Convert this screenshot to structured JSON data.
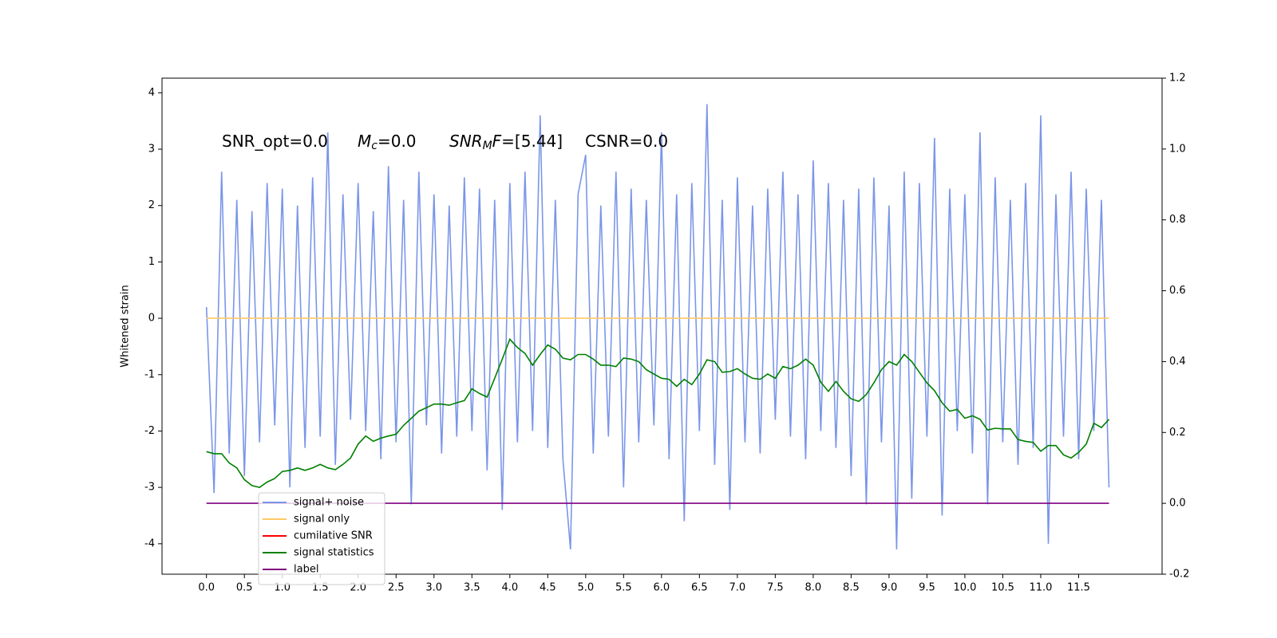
{
  "chart_data": {
    "type": "line",
    "ylabel": "Whitened strain",
    "annotations": [
      [
        {
          "text": "SNR_opt=0.0"
        }
      ],
      [
        {
          "text": "M",
          "italic": true
        },
        {
          "text": "c",
          "italic": true,
          "sub": true
        },
        {
          "text": "=0.0"
        }
      ],
      [
        {
          "text": "SNR",
          "italic": true
        },
        {
          "text": "M",
          "italic": true,
          "sub": true
        },
        {
          "text": "F",
          "italic": true
        },
        {
          "text": "=[5.44]"
        }
      ],
      [
        {
          "text": "CSNR=0.0"
        }
      ]
    ],
    "x": [
      0.0,
      0.1,
      0.2,
      0.3,
      0.4,
      0.5,
      0.6,
      0.7,
      0.8,
      0.9,
      1.0,
      1.1,
      1.2,
      1.3,
      1.4,
      1.5,
      1.6,
      1.7,
      1.8,
      1.9,
      2.0,
      2.1,
      2.2,
      2.3,
      2.4,
      2.5,
      2.6,
      2.7,
      2.8,
      2.9,
      3.0,
      3.1,
      3.2,
      3.3,
      3.4,
      3.5,
      3.6,
      3.7,
      3.8,
      3.9,
      4.0,
      4.1,
      4.2,
      4.3,
      4.4,
      4.5,
      4.6,
      4.7,
      4.8,
      4.9,
      5.0,
      5.1,
      5.2,
      5.3,
      5.4,
      5.5,
      5.6,
      5.7,
      5.8,
      5.9,
      6.0,
      6.1,
      6.2,
      6.3,
      6.4,
      6.5,
      6.6,
      6.7,
      6.8,
      6.9,
      7.0,
      7.1,
      7.2,
      7.3,
      7.4,
      7.5,
      7.6,
      7.7,
      7.8,
      7.9,
      8.0,
      8.1,
      8.2,
      8.3,
      8.4,
      8.5,
      8.6,
      8.7,
      8.8,
      8.9,
      9.0,
      9.1,
      9.2,
      9.3,
      9.4,
      9.5,
      9.6,
      9.7,
      9.8,
      9.9,
      10.0,
      10.1,
      10.2,
      10.3,
      10.4,
      10.5,
      10.6,
      10.7,
      10.8,
      10.9,
      11.0,
      11.1,
      11.2,
      11.3,
      11.4,
      11.5,
      11.6,
      11.7,
      11.8,
      11.9
    ],
    "series": [
      {
        "name": "signal+ noise",
        "color": "#7b96e8",
        "values": [
          0.2,
          -3.1,
          2.6,
          -2.4,
          2.1,
          -2.8,
          1.9,
          -2.2,
          2.4,
          -1.9,
          2.3,
          -3.0,
          2.0,
          -2.3,
          2.5,
          -2.1,
          3.3,
          -2.6,
          2.2,
          -1.8,
          2.4,
          -2.0,
          1.9,
          -2.5,
          2.7,
          -2.2,
          2.1,
          -3.3,
          2.6,
          -1.9,
          2.2,
          -2.4,
          2.0,
          -2.1,
          2.5,
          -2.0,
          2.3,
          -2.7,
          2.1,
          -3.4,
          2.4,
          -2.2,
          2.6,
          -2.0,
          3.6,
          -2.3,
          2.1,
          -2.5,
          -4.1,
          2.2,
          2.9,
          -2.4,
          2.0,
          -2.1,
          2.6,
          -3.0,
          2.3,
          -2.2,
          2.1,
          -1.9,
          3.3,
          -2.5,
          2.2,
          -3.6,
          2.4,
          -2.0,
          3.8,
          -2.6,
          2.1,
          -3.4,
          2.5,
          -2.2,
          2.0,
          -2.4,
          2.3,
          -1.8,
          2.6,
          -2.1,
          2.2,
          -2.5,
          2.8,
          -2.0,
          2.4,
          -2.3,
          2.1,
          -2.8,
          2.3,
          -3.3,
          2.5,
          -2.2,
          2.0,
          -4.1,
          2.6,
          -3.2,
          2.4,
          -2.1,
          3.2,
          -3.5,
          2.3,
          -2.0,
          2.2,
          -2.4,
          3.3,
          -3.3,
          2.5,
          -2.2,
          2.1,
          -2.6,
          2.4,
          -2.3,
          3.6,
          -4.0,
          2.2,
          -2.1,
          2.6,
          -2.5,
          2.3,
          -2.0,
          2.1,
          -3.0
        ]
      },
      {
        "name": "signal only",
        "color": "#ffc966",
        "x": [
          0.0,
          11.9
        ],
        "values": [
          0,
          0
        ]
      },
      {
        "name": "cumilative SNR",
        "color": "#ff0000"
      },
      {
        "name": "signal statistics",
        "color": "#008000",
        "axis": "y2",
        "values": [
          0.146,
          0.14,
          0.14,
          0.114,
          0.1,
          0.067,
          0.05,
          0.045,
          0.06,
          0.07,
          0.09,
          0.093,
          0.1,
          0.093,
          0.1,
          0.11,
          0.1,
          0.095,
          0.11,
          0.128,
          0.167,
          0.19,
          0.175,
          0.184,
          0.19,
          0.195,
          0.22,
          0.24,
          0.26,
          0.27,
          0.28,
          0.28,
          0.277,
          0.284,
          0.29,
          0.323,
          0.31,
          0.3,
          0.353,
          0.407,
          0.463,
          0.44,
          0.423,
          0.39,
          0.42,
          0.447,
          0.435,
          0.41,
          0.405,
          0.42,
          0.42,
          0.407,
          0.39,
          0.39,
          0.386,
          0.41,
          0.407,
          0.4,
          0.377,
          0.365,
          0.353,
          0.35,
          0.33,
          0.35,
          0.335,
          0.365,
          0.405,
          0.4,
          0.37,
          0.372,
          0.38,
          0.365,
          0.353,
          0.35,
          0.365,
          0.353,
          0.386,
          0.38,
          0.39,
          0.407,
          0.39,
          0.342,
          0.316,
          0.344,
          0.316,
          0.295,
          0.288,
          0.307,
          0.34,
          0.377,
          0.4,
          0.39,
          0.42,
          0.4,
          0.37,
          0.34,
          0.318,
          0.284,
          0.26,
          0.265,
          0.24,
          0.247,
          0.237,
          0.207,
          0.212,
          0.21,
          0.21,
          0.18,
          0.175,
          0.172,
          0.147,
          0.163,
          0.163,
          0.137,
          0.128,
          0.144,
          0.167,
          0.226,
          0.214,
          0.237
        ]
      },
      {
        "name": "label",
        "color": "#800080",
        "axis": "y2",
        "x": [
          0.0,
          11.9
        ],
        "values": [
          0,
          0
        ]
      }
    ],
    "xlim": [
      -0.586,
      12.6
    ],
    "xticks": [
      {
        "value": 0,
        "label": "0.0"
      },
      0.5,
      {
        "value": 1,
        "label": "1.0"
      },
      1.5,
      {
        "value": 2,
        "label": "2.0"
      },
      2.5,
      {
        "value": 3,
        "label": "3.0"
      },
      3.5,
      {
        "value": 4,
        "label": "4.0"
      },
      4.5,
      {
        "value": 5,
        "label": "5.0"
      },
      5.5,
      {
        "value": 6,
        "label": "6.0"
      },
      6.5,
      {
        "value": 7,
        "label": "7.0"
      },
      7.5,
      {
        "value": 8,
        "label": "8.0"
      },
      8.5,
      {
        "value": 9,
        "label": "9.0"
      },
      9.5,
      {
        "value": 10,
        "label": "10.0"
      },
      10.5,
      {
        "value": 11,
        "label": "11.0"
      },
      11.5
    ],
    "ylim": [
      -4.54,
      4.26
    ],
    "yticks": [
      -4,
      -3,
      -2,
      -1,
      0,
      1,
      2,
      3,
      4
    ],
    "y2lim": [
      -0.2,
      1.2
    ],
    "y2ticks": [
      -0.2,
      {
        "value": 0,
        "label": "0.0"
      },
      0.2,
      0.4,
      0.6,
      0.8,
      {
        "value": 1,
        "label": "1.0"
      },
      1.2
    ],
    "legend": "lower left"
  }
}
